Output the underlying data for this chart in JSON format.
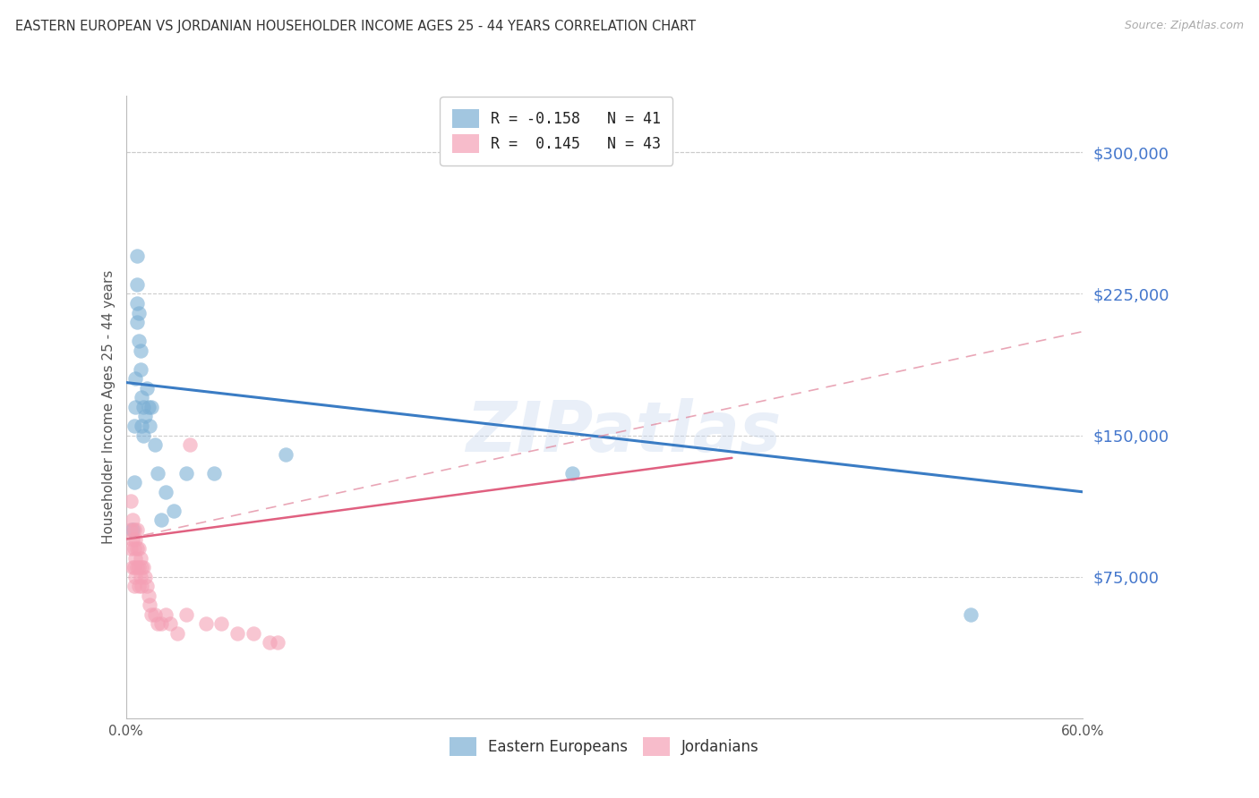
{
  "title": "EASTERN EUROPEAN VS JORDANIAN HOUSEHOLDER INCOME AGES 25 - 44 YEARS CORRELATION CHART",
  "source": "Source: ZipAtlas.com",
  "ylabel": "Householder Income Ages 25 - 44 years",
  "right_yticks": [
    "$300,000",
    "$225,000",
    "$150,000",
    "$75,000"
  ],
  "right_ytick_vals": [
    300000,
    225000,
    150000,
    75000
  ],
  "ymin": 0,
  "ymax": 330000,
  "xmin": 0.0,
  "xmax": 0.6,
  "watermark": "ZIPatlas",
  "blue_color": "#7bafd4",
  "pink_color": "#f4a0b5",
  "right_label_color": "#4477cc",
  "blue_scatter": [
    [
      0.004,
      100000
    ],
    [
      0.005,
      125000
    ],
    [
      0.005,
      155000
    ],
    [
      0.006,
      165000
    ],
    [
      0.006,
      180000
    ],
    [
      0.007,
      210000
    ],
    [
      0.007,
      220000
    ],
    [
      0.007,
      230000
    ],
    [
      0.007,
      245000
    ],
    [
      0.008,
      215000
    ],
    [
      0.008,
      200000
    ],
    [
      0.009,
      195000
    ],
    [
      0.009,
      185000
    ],
    [
      0.01,
      170000
    ],
    [
      0.01,
      155000
    ],
    [
      0.011,
      165000
    ],
    [
      0.011,
      150000
    ],
    [
      0.012,
      160000
    ],
    [
      0.013,
      175000
    ],
    [
      0.014,
      165000
    ],
    [
      0.015,
      155000
    ],
    [
      0.016,
      165000
    ],
    [
      0.018,
      145000
    ],
    [
      0.02,
      130000
    ],
    [
      0.022,
      105000
    ],
    [
      0.025,
      120000
    ],
    [
      0.03,
      110000
    ],
    [
      0.038,
      130000
    ],
    [
      0.055,
      130000
    ],
    [
      0.1,
      140000
    ],
    [
      0.28,
      130000
    ],
    [
      0.53,
      55000
    ]
  ],
  "pink_scatter": [
    [
      0.003,
      100000
    ],
    [
      0.003,
      115000
    ],
    [
      0.003,
      90000
    ],
    [
      0.004,
      105000
    ],
    [
      0.004,
      95000
    ],
    [
      0.004,
      80000
    ],
    [
      0.005,
      100000
    ],
    [
      0.005,
      90000
    ],
    [
      0.005,
      80000
    ],
    [
      0.005,
      70000
    ],
    [
      0.006,
      95000
    ],
    [
      0.006,
      85000
    ],
    [
      0.006,
      75000
    ],
    [
      0.007,
      100000
    ],
    [
      0.007,
      90000
    ],
    [
      0.007,
      80000
    ],
    [
      0.008,
      90000
    ],
    [
      0.008,
      80000
    ],
    [
      0.008,
      70000
    ],
    [
      0.009,
      85000
    ],
    [
      0.009,
      75000
    ],
    [
      0.01,
      80000
    ],
    [
      0.01,
      70000
    ],
    [
      0.011,
      80000
    ],
    [
      0.012,
      75000
    ],
    [
      0.013,
      70000
    ],
    [
      0.014,
      65000
    ],
    [
      0.015,
      60000
    ],
    [
      0.016,
      55000
    ],
    [
      0.018,
      55000
    ],
    [
      0.02,
      50000
    ],
    [
      0.022,
      50000
    ],
    [
      0.025,
      55000
    ],
    [
      0.028,
      50000
    ],
    [
      0.032,
      45000
    ],
    [
      0.038,
      55000
    ],
    [
      0.04,
      145000
    ],
    [
      0.05,
      50000
    ],
    [
      0.06,
      50000
    ],
    [
      0.07,
      45000
    ],
    [
      0.08,
      45000
    ],
    [
      0.09,
      40000
    ],
    [
      0.095,
      40000
    ]
  ],
  "blue_line_x": [
    0.0,
    0.6
  ],
  "blue_line_y": [
    178000,
    120000
  ],
  "pink_solid_line_x": [
    0.0,
    0.38
  ],
  "pink_solid_line_y": [
    95000,
    138000
  ],
  "pink_dash_line_x": [
    0.0,
    0.6
  ],
  "pink_dash_line_y": [
    95000,
    205000
  ]
}
